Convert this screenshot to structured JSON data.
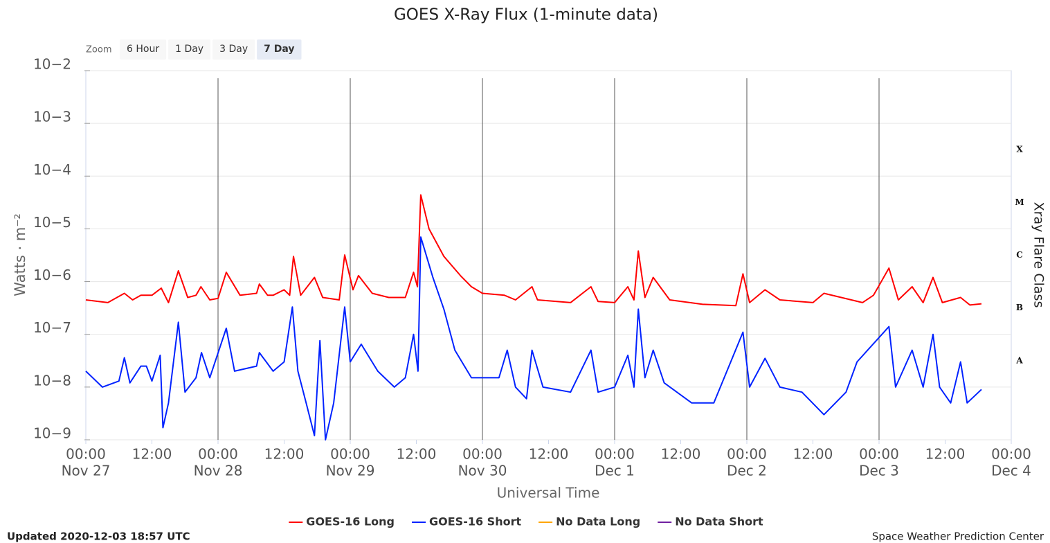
{
  "chart_data": {
    "type": "line",
    "title": "GOES X-Ray Flux (1-minute data)",
    "zoom": {
      "label": "Zoom",
      "buttons": [
        "6 Hour",
        "1 Day",
        "3 Day",
        "7 Day"
      ],
      "selected": 3
    },
    "x_label": "Universal Time",
    "y_label": "Watts · m⁻²",
    "y2_label": "Xray Flare Class",
    "log_y": true,
    "grid": true,
    "xlim": [
      0,
      168
    ],
    "xticks": [
      {
        "value": 0,
        "label": "00:00",
        "date": "Nov 27"
      },
      {
        "value": 12,
        "label": "12:00"
      },
      {
        "value": 24,
        "label": "00:00",
        "date": "Nov 28"
      },
      {
        "value": 36,
        "label": "12:00"
      },
      {
        "value": 48,
        "label": "00:00",
        "date": "Nov 29"
      },
      {
        "value": 60,
        "label": "12:00"
      },
      {
        "value": 72,
        "label": "00:00",
        "date": "Nov 30"
      },
      {
        "value": 84,
        "label": "12:00"
      },
      {
        "value": 96,
        "label": "00:00",
        "date": "Dec 1"
      },
      {
        "value": 108,
        "label": "12:00"
      },
      {
        "value": 120,
        "label": "00:00",
        "date": "Dec 2"
      },
      {
        "value": 132,
        "label": "12:00"
      },
      {
        "value": 144,
        "label": "00:00",
        "date": "Dec 3"
      },
      {
        "value": 156,
        "label": "12:00"
      },
      {
        "value": 168,
        "label": "00:00",
        "date": "Dec 4"
      }
    ],
    "ylim": [
      1e-09,
      0.01
    ],
    "yticks": [
      {
        "value": 0.01,
        "label": "10−2"
      },
      {
        "value": 0.001,
        "label": "10−3"
      },
      {
        "value": 0.0001,
        "label": "10−4"
      },
      {
        "value": 1e-05,
        "label": "10−5"
      },
      {
        "value": 1e-06,
        "label": "10−6"
      },
      {
        "value": 1e-07,
        "label": "10−7"
      },
      {
        "value": 1e-08,
        "label": "10−8"
      },
      {
        "value": 1e-09,
        "label": "10−9"
      }
    ],
    "flare_classes": [
      {
        "value": 0.0001,
        "label": "X"
      },
      {
        "value": 1e-05,
        "label": "M"
      },
      {
        "value": 1e-06,
        "label": "C"
      },
      {
        "value": 1e-07,
        "label": "B"
      },
      {
        "value": 1e-08,
        "label": "A"
      }
    ],
    "series": [
      {
        "name": "GOES-16 Long",
        "color": "#ff0000",
        "x": [
          0,
          4,
          7,
          8.5,
          10,
          12,
          13.7,
          15,
          16.8,
          18.5,
          20,
          20.9,
          22.5,
          24,
          25.5,
          28,
          31,
          31.5,
          33,
          34,
          36,
          37,
          37.7,
          39,
          41.5,
          43,
          46,
          47,
          48.5,
          49.5,
          52,
          55,
          58,
          59.5,
          60.2,
          60.8,
          62.3,
          65,
          68,
          70,
          72,
          76,
          78,
          81,
          82,
          88,
          91.7,
          93,
          96,
          98.4,
          99.5,
          100.3,
          101.5,
          103,
          106,
          112,
          118,
          119.3,
          120.5,
          123.3,
          126,
          132,
          134,
          141,
          143,
          145.8,
          147.5,
          150,
          152,
          153.8,
          155.5,
          158.8,
          160.5,
          162.6
        ],
        "values": [
          4.5e-07,
          4e-07,
          6e-07,
          4.5e-07,
          5.5e-07,
          5.5e-07,
          7.5e-07,
          4e-07,
          1.6e-06,
          5e-07,
          5.5e-07,
          8e-07,
          4.5e-07,
          4.8e-07,
          1.5e-06,
          5.5e-07,
          6e-07,
          9e-07,
          5.5e-07,
          5.5e-07,
          7e-07,
          5.5e-07,
          3e-06,
          5.5e-07,
          1.2e-06,
          5e-07,
          4.5e-07,
          3.2e-06,
          7e-07,
          1.3e-06,
          6e-07,
          5e-07,
          5e-07,
          1.5e-06,
          8e-07,
          4.4e-05,
          1e-05,
          3e-06,
          1.3e-06,
          8e-07,
          6e-07,
          5.5e-07,
          4.5e-07,
          8e-07,
          4.5e-07,
          4e-07,
          8e-07,
          4.2e-07,
          4e-07,
          8e-07,
          4.5e-07,
          3.8e-06,
          5e-07,
          1.2e-06,
          4.5e-07,
          3.7e-07,
          3.5e-07,
          1.4e-06,
          4e-07,
          7e-07,
          4.5e-07,
          4e-07,
          6e-07,
          4e-07,
          5.5e-07,
          1.8e-06,
          4.5e-07,
          8e-07,
          4e-07,
          1.2e-06,
          4e-07,
          5e-07,
          3.6e-07,
          3.8e-07
        ]
      },
      {
        "name": "GOES-16 Short",
        "color": "#0022ff",
        "x": [
          0,
          3,
          6,
          7,
          8,
          10,
          11,
          12,
          13.5,
          14,
          15,
          16.8,
          18,
          20,
          21,
          22.5,
          25.5,
          27,
          31,
          31.5,
          34,
          36,
          37.5,
          38.5,
          40,
          41.5,
          42.5,
          43.5,
          45,
          47,
          48,
          50,
          53,
          56,
          58,
          59.5,
          60.3,
          60.8,
          63,
          65,
          67,
          70,
          72,
          75,
          76.5,
          78,
          80,
          81,
          83,
          88,
          91.7,
          93,
          96,
          98.4,
          99.5,
          100.3,
          101.5,
          103,
          105,
          110,
          114,
          119.3,
          120.5,
          123.3,
          126,
          130,
          134,
          138,
          140,
          145.8,
          147,
          150,
          152,
          153.8,
          155,
          157,
          158.8,
          160,
          162.6
        ],
        "values": [
          2e-08,
          1e-08,
          1.3e-08,
          3.6e-08,
          1.2e-08,
          2.5e-08,
          2.5e-08,
          1.3e-08,
          4e-08,
          1.7e-09,
          5e-09,
          1.7e-07,
          8e-09,
          1.5e-08,
          4.5e-08,
          1.5e-08,
          1.3e-07,
          2e-08,
          2.5e-08,
          4.5e-08,
          2e-08,
          3e-08,
          3.3e-07,
          2e-08,
          5e-09,
          1.2e-09,
          7.6e-08,
          1e-09,
          5e-09,
          3.3e-07,
          3e-08,
          6.5e-08,
          2e-08,
          1e-08,
          1.5e-08,
          1e-07,
          2e-08,
          7e-06,
          1.2e-06,
          3e-07,
          5e-08,
          1.5e-08,
          1.5e-08,
          1.5e-08,
          5e-08,
          1e-08,
          6e-09,
          5e-08,
          1e-08,
          8e-09,
          5e-08,
          8e-09,
          1e-08,
          4e-08,
          1e-08,
          3e-07,
          1.5e-08,
          5e-08,
          1.2e-08,
          5e-09,
          5e-09,
          1.1e-07,
          1e-08,
          3.5e-08,
          1e-08,
          8e-09,
          3e-09,
          8e-09,
          3e-08,
          1.4e-07,
          1e-08,
          5e-08,
          1e-08,
          1e-07,
          1e-08,
          5e-09,
          3e-08,
          5e-09,
          9e-09
        ]
      },
      {
        "name": "No Data Long",
        "color": "#ffa500",
        "x": [],
        "values": []
      },
      {
        "name": "No Data Short",
        "color": "#7020a0",
        "x": [],
        "values": []
      }
    ],
    "updated": "Updated 2020-12-03 18:57 UTC",
    "credit": "Space Weather Prediction Center"
  }
}
